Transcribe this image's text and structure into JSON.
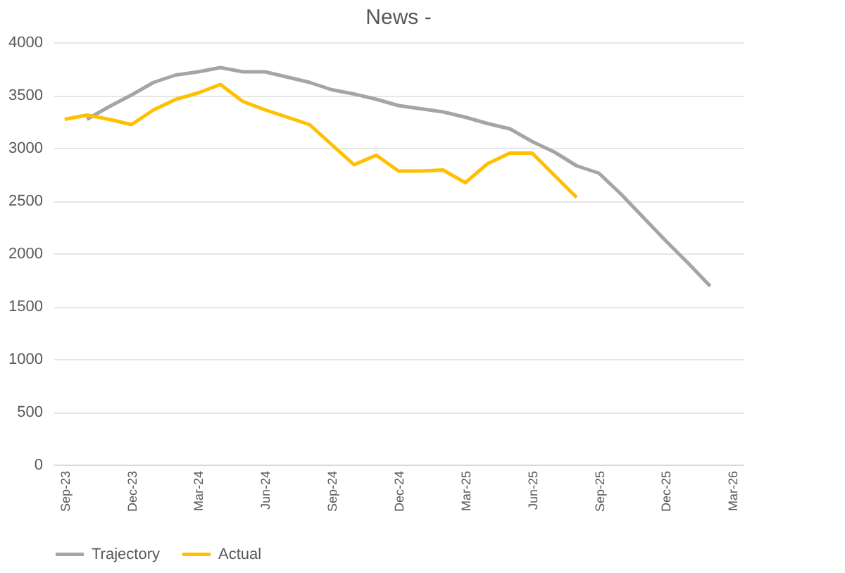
{
  "chart_data": {
    "type": "line",
    "title": "News -",
    "categories": [
      "Sep-23",
      null,
      null,
      "Dec-23",
      null,
      null,
      "Mar-24",
      null,
      null,
      "Jun-24",
      null,
      null,
      "Sep-24",
      null,
      null,
      "Dec-24",
      null,
      null,
      "Mar-25",
      null,
      null,
      "Jun-25",
      null,
      null,
      "Sep-25",
      null,
      null,
      "Dec-25",
      null,
      null,
      "Mar-26"
    ],
    "series": [
      {
        "name": "Trajectory",
        "color": "#a5a5a5",
        "values": [
          null,
          3270,
          3390,
          3500,
          3620,
          3690,
          3720,
          3760,
          3720,
          3720,
          3670,
          3620,
          3550,
          3510,
          3460,
          3400,
          3370,
          3340,
          3290,
          3230,
          3180,
          3060,
          2960,
          2830,
          2760,
          2560,
          2340,
          2120,
          1910,
          1690,
          null
        ]
      },
      {
        "name": "Actual",
        "color": "#ffc000",
        "values": [
          3270,
          3310,
          3270,
          3220,
          3360,
          3460,
          3520,
          3600,
          3440,
          3360,
          3290,
          3220,
          3030,
          2840,
          2930,
          2780,
          2780,
          2790,
          2670,
          2850,
          2950,
          2950,
          2740,
          2530,
          null,
          null,
          null,
          null,
          null,
          null,
          null
        ]
      }
    ],
    "ylim": [
      0,
      4000
    ],
    "yticks": [
      0,
      500,
      1000,
      1500,
      2000,
      2500,
      3000,
      3500,
      4000
    ],
    "grid": "y",
    "legend": "bottom",
    "marker": "none",
    "line_style": "solid"
  }
}
